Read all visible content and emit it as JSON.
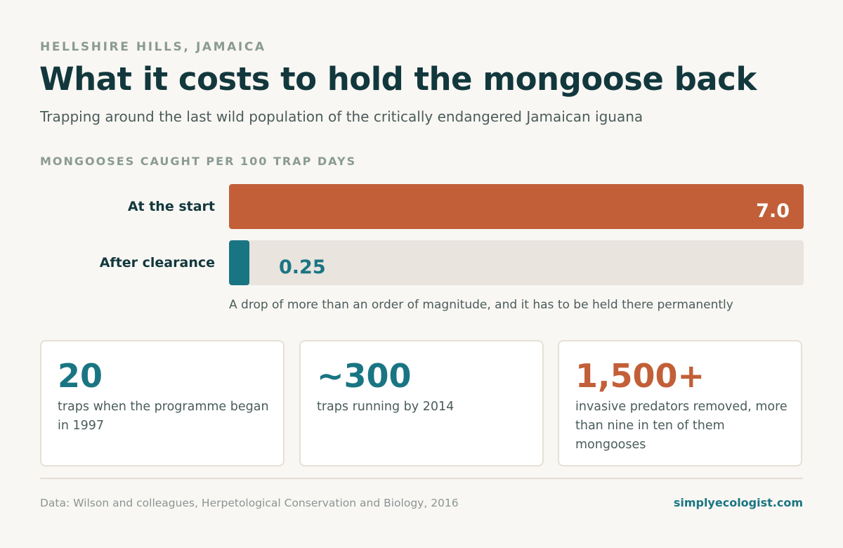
{
  "header": {
    "eyebrow": "HELLSHIRE HILLS, JAMAICA",
    "title": "What it costs to hold the mongoose back",
    "subtitle": "Trapping around the last wild population of the critically endangered Jamaican iguana"
  },
  "colors": {
    "start_bar": "#c25f38",
    "after_bar": "#1a7583",
    "track": "#e9e4de",
    "ink": "#12383d"
  },
  "chart_data": {
    "type": "bar",
    "orientation": "horizontal",
    "title": "MONGOOSES CAUGHT PER 100 TRAP DAYS",
    "categories": [
      "At the start",
      "After clearance"
    ],
    "values": [
      7.0,
      0.25
    ],
    "value_labels": [
      "7.0",
      "0.25"
    ],
    "xlim": [
      0,
      7.0
    ],
    "grid": false,
    "note": "A drop of more than an order of magnitude, and it has to be held there permanently"
  },
  "stats": [
    {
      "value": "20",
      "desc": "traps when the programme began in 1997",
      "color": "#1a7583"
    },
    {
      "value": "~300",
      "desc": "traps running by 2014",
      "color": "#1a7583"
    },
    {
      "value": "1,500+",
      "desc": "invasive predators removed, more than nine in ten of them mongooses",
      "color": "#c25f38"
    }
  ],
  "footer": {
    "source": "Data: Wilson and colleagues, Herpetological Conservation and Biology, 2016",
    "brand": "simplyecologist.com"
  }
}
